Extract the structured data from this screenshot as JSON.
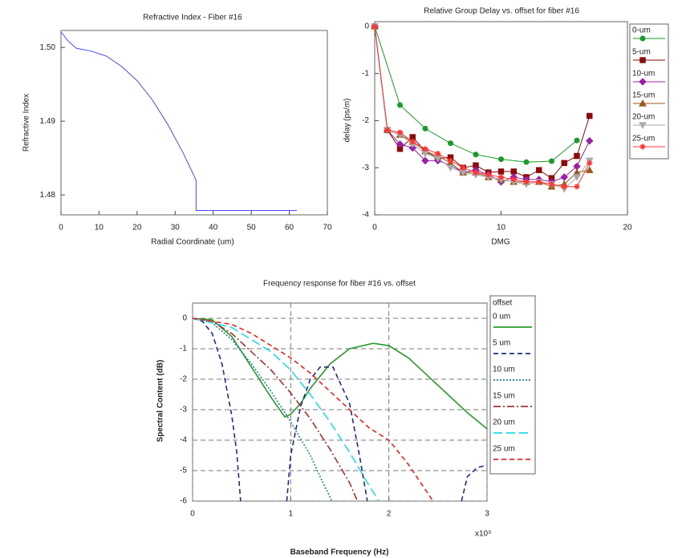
{
  "chart_data": [
    {
      "type": "line",
      "title": "Refractive Index - Fiber #16",
      "x_label": "Radial Coordinate (um)",
      "y_label": "Refractive Index",
      "x": [
        0,
        2,
        4,
        8,
        12,
        16,
        20,
        24,
        28,
        32,
        35.5,
        35.5,
        62
      ],
      "values": [
        1.5021,
        1.5008,
        1.4999,
        1.4995,
        1.4988,
        1.4974,
        1.4955,
        1.4929,
        1.4896,
        1.4858,
        1.482,
        1.4779,
        1.4779
      ],
      "color": "#4a4aff",
      "xlim": [
        0,
        70
      ],
      "xticks": [
        0,
        10,
        20,
        30,
        40,
        50,
        60,
        70
      ],
      "ylim": [
        1.4773,
        1.5023
      ],
      "yticks": [
        1.48,
        1.49,
        {
          "value": 1.5,
          "label": "1.50"
        }
      ],
      "grid": false
    },
    {
      "type": "line",
      "title": "Relative Group Delay vs.  offset for fiber #16",
      "x_label": "DMG",
      "y_label": "delay (ps/m)",
      "xlim": [
        0,
        20
      ],
      "xticks": [
        0,
        10,
        20
      ],
      "ylim": [
        -4,
        0.1
      ],
      "yticks": [
        0,
        -1,
        -2,
        -3,
        -4
      ],
      "grid": false,
      "legend": "right",
      "series": [
        {
          "name": "0-um",
          "color": "#1a9a2a",
          "marker": "circle",
          "x": [
            0,
            2,
            4,
            6,
            8,
            10,
            12,
            14,
            16
          ],
          "values": [
            0,
            -1.67,
            -2.17,
            -2.48,
            -2.72,
            -2.82,
            -2.88,
            -2.86,
            -2.42
          ]
        },
        {
          "name": "5-um",
          "color": "#8b0a0a",
          "marker": "square",
          "x": [
            0,
            1,
            2,
            3,
            4,
            5,
            6,
            7,
            8,
            9,
            10,
            11,
            12,
            13,
            14,
            15,
            16,
            17
          ],
          "values": [
            0,
            -2.2,
            -2.6,
            -2.35,
            -2.65,
            -2.8,
            -2.78,
            -3.0,
            -2.95,
            -3.1,
            -3.08,
            -3.08,
            -3.2,
            -3.05,
            -3.22,
            -2.9,
            -2.75,
            -1.9
          ]
        },
        {
          "name": "10-um",
          "color": "#9b1fa8",
          "marker": "diamond",
          "x": [
            0,
            1,
            2,
            3,
            4,
            5,
            6,
            7,
            8,
            9,
            10,
            11,
            12,
            13,
            14,
            15,
            16,
            17
          ],
          "values": [
            0,
            -2.2,
            -2.5,
            -2.58,
            -2.85,
            -2.85,
            -2.95,
            -3.1,
            -3.05,
            -3.15,
            -3.3,
            -3.2,
            -3.25,
            -3.25,
            -3.3,
            -3.2,
            -2.97,
            -2.43
          ]
        },
        {
          "name": "15-um",
          "color": "#9a5a1a",
          "marker": "triangle",
          "x": [
            0,
            1,
            2,
            3,
            4,
            5,
            6,
            7,
            8,
            9,
            10,
            11,
            12,
            13,
            14,
            15,
            16,
            17
          ],
          "values": [
            0,
            -2.2,
            -2.3,
            -2.45,
            -2.65,
            -2.75,
            -2.9,
            -3.1,
            -3.1,
            -3.2,
            -3.25,
            -3.3,
            -3.3,
            -3.3,
            -3.4,
            -3.35,
            -3.1,
            -3.05
          ]
        },
        {
          "name": "20-um",
          "color": "#aaaaaa",
          "marker": "triangle-down",
          "x": [
            0,
            1,
            2,
            3,
            4,
            5,
            6,
            7,
            8,
            9,
            10,
            11,
            12,
            13,
            14,
            15,
            16,
            17
          ],
          "values": [
            0,
            -2.2,
            -2.3,
            -2.5,
            -2.7,
            -2.8,
            -3.0,
            -3.1,
            -3.15,
            -3.2,
            -3.25,
            -3.3,
            -3.35,
            -3.3,
            -3.35,
            -3.45,
            -3.2,
            -2.85
          ]
        },
        {
          "name": "25-um",
          "color": "#ff3535",
          "marker": "star",
          "x": [
            0,
            1,
            2,
            3,
            4,
            5,
            6,
            7,
            8,
            9,
            10,
            11,
            12,
            13,
            14,
            15,
            16,
            17
          ],
          "values": [
            0,
            -2.2,
            -2.25,
            -2.45,
            -2.6,
            -2.7,
            -2.85,
            -3.0,
            -3.1,
            -3.15,
            -3.2,
            -3.25,
            -3.3,
            -3.3,
            -3.35,
            -3.4,
            -3.4,
            -2.9
          ]
        }
      ]
    },
    {
      "type": "line",
      "title": "Frequency response for fiber #16 vs. offset",
      "x_label": "Baseband Frequency (Hz)",
      "y_label": "Spectral Content (dB)",
      "x_multiplier": "x10⁹",
      "legend_title": "offset",
      "legend": "right",
      "xlim": [
        0,
        3
      ],
      "xticks": [
        0,
        1,
        2,
        3
      ],
      "ylim": [
        -6,
        0.5
      ],
      "yticks": [
        0,
        -1,
        -2,
        -3,
        -4,
        -5,
        -6
      ],
      "grid": true,
      "series": [
        {
          "name": "0 um",
          "color": "#2a9a2a",
          "dash": "solid",
          "x": [
            0,
            0.2,
            0.4,
            0.6,
            0.8,
            0.94,
            1.0,
            1.1,
            1.2,
            1.4,
            1.6,
            1.84,
            2.0,
            2.2,
            2.4,
            2.6,
            2.8,
            3.0
          ],
          "values": [
            0,
            -0.05,
            -0.6,
            -1.6,
            -2.6,
            -3.24,
            -3.15,
            -2.8,
            -2.3,
            -1.5,
            -1.0,
            -0.82,
            -0.9,
            -1.3,
            -1.9,
            -2.5,
            -3.1,
            -3.63
          ]
        },
        {
          "name": "5 um",
          "color": "#1c2a8c",
          "dash": "dash",
          "x": [
            0,
            0.1,
            0.2,
            0.3,
            0.4,
            0.45,
            0.49,
            null,
            0.96,
            1.0,
            1.1,
            1.2,
            1.3,
            1.43,
            1.6,
            1.7,
            1.78,
            null,
            2.74,
            2.8,
            2.9,
            3.0
          ],
          "values": [
            0,
            -0.1,
            -0.5,
            -1.5,
            -3.2,
            -4.4,
            -6,
            null,
            -6,
            -4.5,
            -2.9,
            -2.0,
            -1.6,
            -1.6,
            -2.8,
            -4.5,
            -6,
            null,
            -6,
            -5.2,
            -4.9,
            -4.82
          ]
        },
        {
          "name": "10 um",
          "color": "#1a8a8a",
          "dash": "dot",
          "x": [
            0,
            0.2,
            0.4,
            0.6,
            0.8,
            1.0,
            1.2,
            1.3,
            1.42
          ],
          "values": [
            0,
            -0.15,
            -0.7,
            -1.5,
            -2.4,
            -3.4,
            -4.5,
            -5.2,
            -6
          ]
        },
        {
          "name": "15 um",
          "color": "#a83232",
          "dash": "dashdot",
          "x": [
            0,
            0.2,
            0.4,
            0.6,
            0.8,
            1.0,
            1.2,
            1.4,
            1.6,
            1.68
          ],
          "values": [
            0,
            -0.1,
            -0.5,
            -1.1,
            -1.7,
            -2.45,
            -3.3,
            -4.3,
            -5.4,
            -6
          ]
        },
        {
          "name": "20 um",
          "color": "#22dde8",
          "dash": "longdash",
          "x": [
            0,
            0.4,
            0.6,
            0.8,
            1.0,
            1.2,
            1.4,
            1.6,
            1.8,
            1.9
          ],
          "values": [
            0,
            -0.3,
            -0.7,
            -1.1,
            -1.7,
            -2.5,
            -3.4,
            -4.4,
            -5.5,
            -6
          ]
        },
        {
          "name": "25 um",
          "color": "#ee2222",
          "dash": "dash",
          "x": [
            0,
            0.4,
            0.6,
            0.8,
            1.0,
            1.2,
            1.4,
            1.6,
            1.8,
            2.0,
            2.2,
            2.45
          ],
          "values": [
            0,
            -0.2,
            -0.5,
            -0.9,
            -1.3,
            -1.8,
            -2.4,
            -3.0,
            -3.6,
            -4.0,
            -4.8,
            -6
          ]
        }
      ]
    }
  ]
}
